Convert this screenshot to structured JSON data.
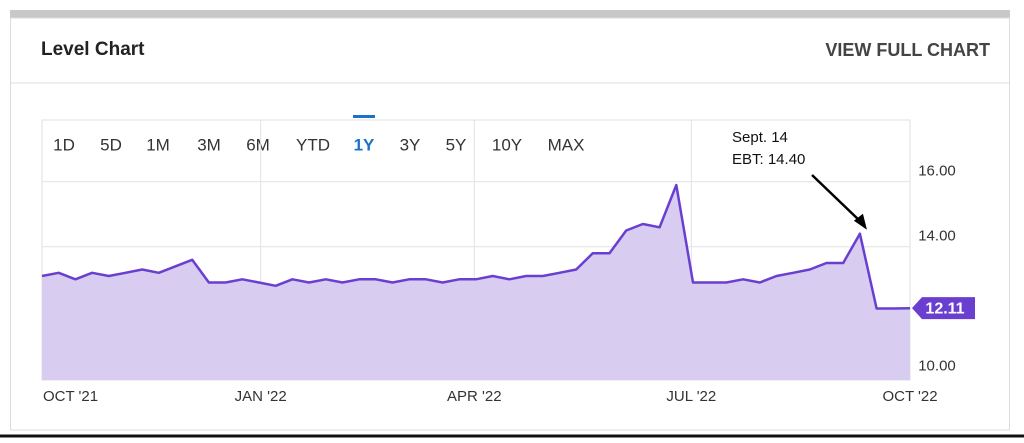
{
  "header": {
    "title": "Level Chart",
    "link": "VIEW FULL CHART"
  },
  "ranges": [
    "1D",
    "5D",
    "1M",
    "3M",
    "6M",
    "YTD",
    "1Y",
    "3Y",
    "5Y",
    "10Y",
    "MAX"
  ],
  "selected_range": "1Y",
  "chart_data": {
    "type": "area",
    "color": "#6a3fd0",
    "fill": "#d8cdf1",
    "values": [
      13.1,
      13.2,
      13.0,
      13.2,
      13.1,
      13.2,
      13.3,
      13.2,
      13.4,
      13.6,
      12.9,
      12.9,
      13.0,
      12.9,
      12.8,
      13.0,
      12.9,
      13.0,
      12.9,
      13.0,
      13.0,
      12.9,
      13.0,
      13.0,
      12.9,
      13.0,
      13.0,
      13.1,
      13.0,
      13.1,
      13.1,
      13.2,
      13.3,
      13.8,
      13.8,
      14.5,
      14.7,
      14.6,
      15.9,
      12.9,
      12.9,
      12.9,
      13.0,
      12.9,
      13.1,
      13.2,
      13.3,
      13.5,
      13.5,
      14.4,
      12.1,
      12.1,
      12.11
    ],
    "xlim": [
      0,
      52
    ],
    "xticks": [
      {
        "value": 0,
        "label": "OCT '21"
      },
      {
        "value": 13.1,
        "label": "JAN '22"
      },
      {
        "value": 25.9,
        "label": "APR '22"
      },
      {
        "value": 38.9,
        "label": "JUL '22"
      },
      {
        "value": 52,
        "label": "OCT '22"
      }
    ],
    "ylim": [
      9.9,
      17.9
    ],
    "yticks": [
      {
        "value": 10,
        "label": "10.00"
      },
      {
        "value": 14,
        "label": "14.00"
      },
      {
        "value": 16,
        "label": "16.00"
      }
    ],
    "grid": true,
    "annotation": [
      "Sept. 14",
      "EBT: 14.40"
    ],
    "annotation_index": 49
  }
}
